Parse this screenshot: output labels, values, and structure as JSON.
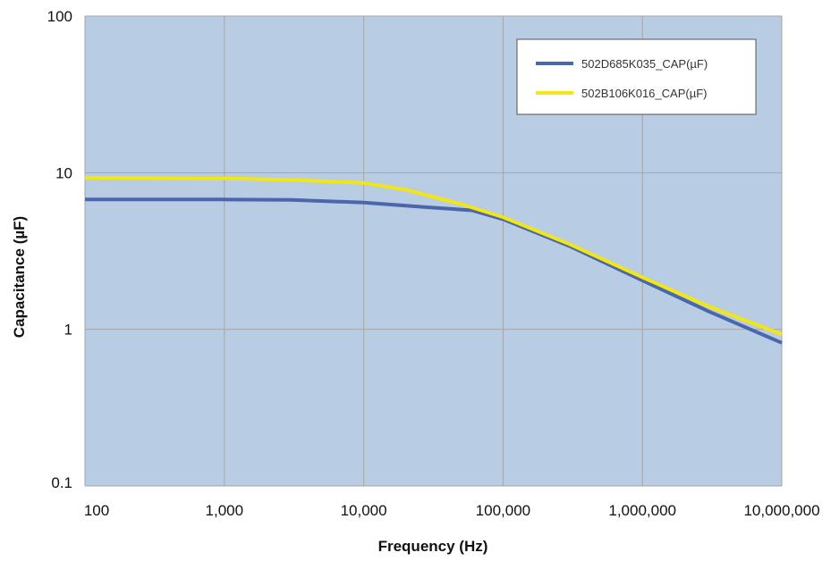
{
  "chart_data": {
    "type": "line",
    "title": "",
    "xlabel": "Frequency (Hz)",
    "ylabel": "Capacitance (µF)",
    "x_scale": "log",
    "y_scale": "log",
    "xlim": [
      100,
      10000000
    ],
    "ylim": [
      0.1,
      100
    ],
    "x_ticks": [
      100,
      1000,
      10000,
      100000,
      1000000,
      10000000
    ],
    "x_tick_labels": [
      "100",
      "1,000",
      "10,000",
      "100,000",
      "1,000,000",
      "10,000,000"
    ],
    "y_ticks": [
      0.1,
      1,
      10,
      100
    ],
    "y_tick_labels": [
      "0.1",
      "1",
      "10",
      "100"
    ],
    "grid": true,
    "legend_position": "top-right",
    "plot_background": "#b8cce4",
    "series": [
      {
        "name": "502D685K035_CAP(µF)",
        "color": "#4a66ac",
        "x": [
          100,
          1000,
          3000,
          10000,
          30000,
          60000,
          100000,
          300000,
          1000000,
          3000000,
          10000000
        ],
        "y": [
          6.75,
          6.75,
          6.7,
          6.45,
          6.0,
          5.75,
          5.05,
          3.4,
          2.05,
          1.3,
          0.82
        ]
      },
      {
        "name": "502B106K016_CAP(µF)",
        "color": "#f2e614",
        "x": [
          100,
          1000,
          3000,
          10000,
          20000,
          50000,
          100000,
          300000,
          1000000,
          3000000,
          10000000
        ],
        "y": [
          9.3,
          9.2,
          9.0,
          8.6,
          7.8,
          6.3,
          5.2,
          3.5,
          2.15,
          1.4,
          0.93
        ]
      }
    ]
  }
}
